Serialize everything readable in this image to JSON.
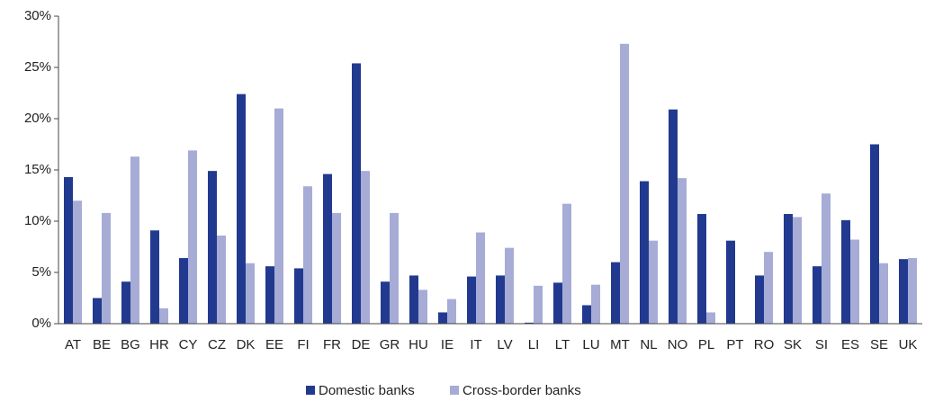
{
  "chart_data": {
    "type": "bar",
    "categories": [
      "AT",
      "BE",
      "BG",
      "HR",
      "CY",
      "CZ",
      "DK",
      "EE",
      "FI",
      "FR",
      "DE",
      "GR",
      "HU",
      "IE",
      "IT",
      "LV",
      "LI",
      "LT",
      "LU",
      "MT",
      "NL",
      "NO",
      "PL",
      "PT",
      "RO",
      "SK",
      "SI",
      "ES",
      "SE",
      "UK"
    ],
    "series": [
      {
        "name": "Domestic banks",
        "color": "#213a8f",
        "values": [
          14.3,
          2.5,
          4.1,
          9.1,
          6.4,
          14.9,
          22.4,
          5.6,
          5.4,
          14.6,
          25.4,
          4.1,
          4.7,
          1.1,
          4.6,
          4.7,
          0.1,
          4.0,
          1.8,
          6.0,
          13.9,
          20.9,
          10.7,
          8.1,
          4.7,
          10.7,
          5.6,
          10.1,
          17.5,
          6.3
        ]
      },
      {
        "name": "Cross-border banks",
        "color": "#a6acd6",
        "values": [
          12.0,
          10.8,
          16.3,
          1.5,
          16.9,
          8.6,
          5.9,
          21.0,
          13.4,
          10.8,
          14.9,
          10.8,
          3.3,
          2.4,
          8.9,
          7.4,
          3.7,
          11.7,
          3.8,
          27.3,
          8.1,
          14.2,
          1.1,
          0,
          7.0,
          10.4,
          12.7,
          8.2,
          5.9,
          6.4
        ]
      }
    ],
    "ylim": [
      0,
      30
    ],
    "yticks": [
      {
        "value": 0,
        "label": "0%"
      },
      {
        "value": 5,
        "label": "5%"
      },
      {
        "value": 10,
        "label": "10%"
      },
      {
        "value": 15,
        "label": "15%"
      },
      {
        "value": 20,
        "label": "20%"
      },
      {
        "value": 25,
        "label": "25%"
      },
      {
        "value": 30,
        "label": "30%"
      }
    ],
    "legend": "bottom"
  }
}
